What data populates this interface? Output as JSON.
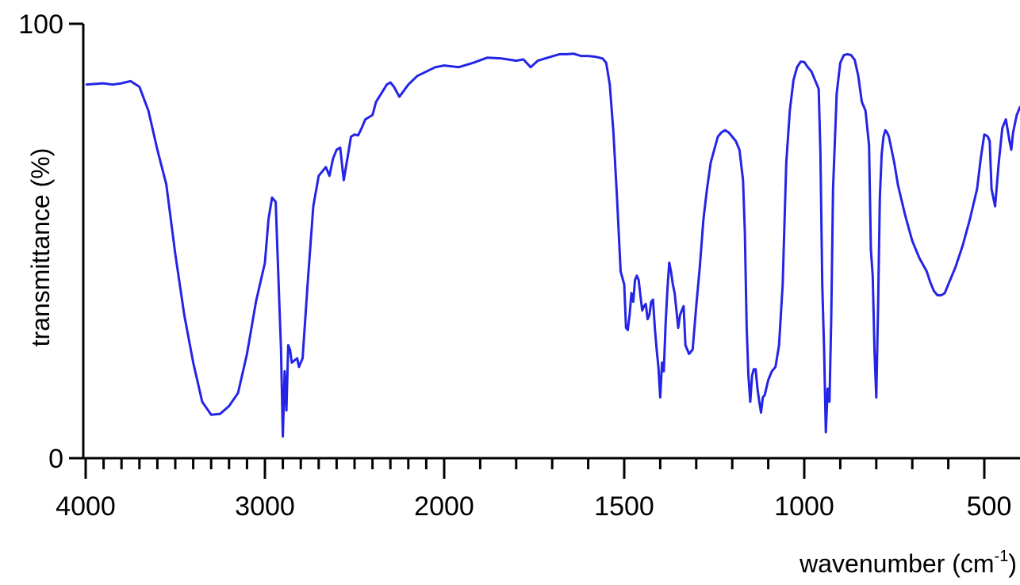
{
  "chart_data": {
    "type": "line",
    "title": "",
    "xlabel": "wavenumber (cm",
    "xlabel_sup": "-1",
    "xlabel_close": ")",
    "ylabel": "transmittance (%)",
    "xlim": [
      4000,
      400
    ],
    "ylim": [
      0,
      100
    ],
    "x_reversed": true,
    "x_scale": "piecewise",
    "x_segments": [
      {
        "from": 4000,
        "to": 2000
      },
      {
        "from": 2000,
        "to": 400
      }
    ],
    "grid": false,
    "x_tick_labels": [
      {
        "value": 4000,
        "label": "4000"
      },
      {
        "value": 3000,
        "label": "3000"
      },
      {
        "value": 2000,
        "label": "2000"
      },
      {
        "value": 1500,
        "label": "1500"
      },
      {
        "value": 1000,
        "label": "1000"
      },
      {
        "value": 500,
        "label": "500"
      }
    ],
    "y_tick_labels": [
      {
        "value": 100,
        "label": "100"
      },
      {
        "value": 0,
        "label": "0"
      }
    ],
    "series": [
      {
        "color": "#2424e6",
        "points": [
          [
            4000,
            86
          ],
          [
            3900,
            86.3
          ],
          [
            3850,
            86
          ],
          [
            3800,
            86.3
          ],
          [
            3750,
            86.8
          ],
          [
            3700,
            85.5
          ],
          [
            3650,
            80
          ],
          [
            3600,
            71
          ],
          [
            3550,
            63
          ],
          [
            3500,
            47
          ],
          [
            3450,
            33
          ],
          [
            3400,
            22
          ],
          [
            3350,
            13
          ],
          [
            3300,
            10
          ],
          [
            3250,
            10.2
          ],
          [
            3200,
            12
          ],
          [
            3150,
            15
          ],
          [
            3100,
            24
          ],
          [
            3050,
            36
          ],
          [
            3000,
            45
          ],
          [
            2980,
            55
          ],
          [
            2960,
            60
          ],
          [
            2940,
            59
          ],
          [
            2920,
            36
          ],
          [
            2910,
            25
          ],
          [
            2900,
            5
          ],
          [
            2890,
            20
          ],
          [
            2880,
            11
          ],
          [
            2870,
            26
          ],
          [
            2860,
            25
          ],
          [
            2850,
            22
          ],
          [
            2820,
            23
          ],
          [
            2810,
            21
          ],
          [
            2790,
            23
          ],
          [
            2760,
            41
          ],
          [
            2730,
            58
          ],
          [
            2700,
            65
          ],
          [
            2660,
            67
          ],
          [
            2640,
            65
          ],
          [
            2620,
            69
          ],
          [
            2600,
            71
          ],
          [
            2580,
            71.5
          ],
          [
            2560,
            64
          ],
          [
            2540,
            69
          ],
          [
            2520,
            74
          ],
          [
            2500,
            74.5
          ],
          [
            2480,
            74.3
          ],
          [
            2460,
            76
          ],
          [
            2440,
            78
          ],
          [
            2400,
            79
          ],
          [
            2380,
            82
          ],
          [
            2350,
            84
          ],
          [
            2320,
            86
          ],
          [
            2300,
            86.5
          ],
          [
            2280,
            85.5
          ],
          [
            2250,
            83.2
          ],
          [
            2200,
            86
          ],
          [
            2150,
            88
          ],
          [
            2100,
            89
          ],
          [
            2050,
            90
          ],
          [
            2000,
            90.4
          ],
          [
            1960,
            90
          ],
          [
            1920,
            91
          ],
          [
            1880,
            92.2
          ],
          [
            1840,
            92
          ],
          [
            1800,
            91.5
          ],
          [
            1780,
            91.8
          ],
          [
            1760,
            90
          ],
          [
            1740,
            91.5
          ],
          [
            1700,
            92.5
          ],
          [
            1680,
            93
          ],
          [
            1660,
            93
          ],
          [
            1640,
            93.1
          ],
          [
            1620,
            92.6
          ],
          [
            1600,
            92.6
          ],
          [
            1580,
            92.4
          ],
          [
            1560,
            92
          ],
          [
            1550,
            91
          ],
          [
            1540,
            86
          ],
          [
            1530,
            75
          ],
          [
            1520,
            60
          ],
          [
            1510,
            43
          ],
          [
            1500,
            40
          ],
          [
            1495,
            30
          ],
          [
            1490,
            29.5
          ],
          [
            1485,
            33
          ],
          [
            1480,
            38
          ],
          [
            1475,
            36
          ],
          [
            1470,
            41
          ],
          [
            1465,
            42
          ],
          [
            1460,
            41
          ],
          [
            1455,
            37.5
          ],
          [
            1450,
            34
          ],
          [
            1445,
            35
          ],
          [
            1440,
            35.5
          ],
          [
            1435,
            32
          ],
          [
            1430,
            33
          ],
          [
            1425,
            36
          ],
          [
            1420,
            36.5
          ],
          [
            1415,
            30
          ],
          [
            1410,
            25
          ],
          [
            1405,
            21
          ],
          [
            1400,
            14
          ],
          [
            1395,
            22
          ],
          [
            1390,
            20
          ],
          [
            1385,
            31
          ],
          [
            1380,
            39
          ],
          [
            1375,
            45
          ],
          [
            1370,
            43
          ],
          [
            1365,
            40
          ],
          [
            1360,
            38
          ],
          [
            1350,
            30
          ],
          [
            1345,
            33
          ],
          [
            1340,
            34
          ],
          [
            1335,
            35
          ],
          [
            1330,
            26
          ],
          [
            1325,
            25
          ],
          [
            1320,
            24
          ],
          [
            1310,
            25
          ],
          [
            1300,
            35
          ],
          [
            1290,
            44
          ],
          [
            1280,
            55
          ],
          [
            1270,
            62
          ],
          [
            1260,
            68
          ],
          [
            1250,
            71
          ],
          [
            1240,
            74
          ],
          [
            1230,
            75
          ],
          [
            1220,
            75.5
          ],
          [
            1210,
            75
          ],
          [
            1200,
            74
          ],
          [
            1190,
            73
          ],
          [
            1180,
            71
          ],
          [
            1170,
            64
          ],
          [
            1165,
            52
          ],
          [
            1160,
            30
          ],
          [
            1155,
            19
          ],
          [
            1150,
            13
          ],
          [
            1145,
            19
          ],
          [
            1140,
            20.5
          ],
          [
            1135,
            20.5
          ],
          [
            1130,
            16
          ],
          [
            1125,
            13
          ],
          [
            1120,
            10.5
          ],
          [
            1115,
            14
          ],
          [
            1110,
            14.5
          ],
          [
            1100,
            18
          ],
          [
            1090,
            20
          ],
          [
            1080,
            21
          ],
          [
            1070,
            26
          ],
          [
            1060,
            40
          ],
          [
            1050,
            68
          ],
          [
            1040,
            80
          ],
          [
            1030,
            87
          ],
          [
            1020,
            90
          ],
          [
            1010,
            91.3
          ],
          [
            1000,
            91.2
          ],
          [
            990,
            90
          ],
          [
            980,
            89
          ],
          [
            970,
            87
          ],
          [
            960,
            85
          ],
          [
            955,
            70
          ],
          [
            950,
            40
          ],
          [
            945,
            25
          ],
          [
            940,
            6
          ],
          [
            935,
            16
          ],
          [
            930,
            13
          ],
          [
            925,
            32
          ],
          [
            920,
            62
          ],
          [
            910,
            84
          ],
          [
            900,
            91
          ],
          [
            890,
            92.8
          ],
          [
            880,
            93
          ],
          [
            870,
            92.8
          ],
          [
            860,
            91.7
          ],
          [
            850,
            88
          ],
          [
            840,
            82
          ],
          [
            830,
            80
          ],
          [
            820,
            72
          ],
          [
            815,
            48
          ],
          [
            810,
            42
          ],
          [
            805,
            25
          ],
          [
            800,
            14
          ],
          [
            795,
            35
          ],
          [
            790,
            60
          ],
          [
            785,
            70
          ],
          [
            780,
            74
          ],
          [
            775,
            75.5
          ],
          [
            770,
            75
          ],
          [
            765,
            74
          ],
          [
            760,
            72
          ],
          [
            750,
            68
          ],
          [
            740,
            63
          ],
          [
            720,
            56
          ],
          [
            700,
            50
          ],
          [
            680,
            46
          ],
          [
            660,
            43
          ],
          [
            650,
            40.5
          ],
          [
            640,
            38.5
          ],
          [
            630,
            37.5
          ],
          [
            620,
            37.5
          ],
          [
            610,
            38
          ],
          [
            600,
            40
          ],
          [
            580,
            44
          ],
          [
            560,
            49
          ],
          [
            540,
            55
          ],
          [
            520,
            62
          ],
          [
            510,
            69
          ],
          [
            500,
            74.5
          ],
          [
            495,
            74.3
          ],
          [
            490,
            74
          ],
          [
            485,
            73
          ],
          [
            480,
            62
          ],
          [
            475,
            60
          ],
          [
            470,
            58
          ],
          [
            460,
            68
          ],
          [
            450,
            76
          ],
          [
            440,
            78
          ],
          [
            430,
            73
          ],
          [
            425,
            71
          ],
          [
            420,
            75
          ],
          [
            410,
            79
          ],
          [
            400,
            81
          ]
        ]
      }
    ]
  }
}
